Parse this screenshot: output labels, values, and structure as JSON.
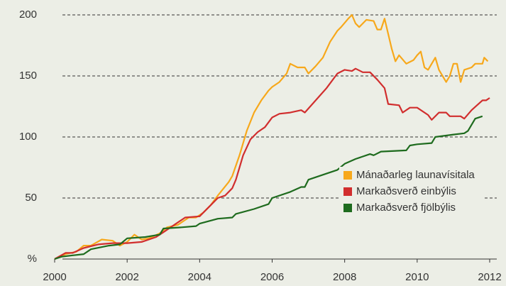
{
  "chart_data": {
    "type": "line",
    "xlim": [
      2000,
      2012
    ],
    "xticks": [
      2000,
      2002,
      2004,
      2006,
      2008,
      2010,
      2012
    ],
    "ylim": [
      0,
      200
    ],
    "yticks": [
      {
        "value": 0,
        "label": "%"
      },
      50,
      100,
      150,
      200
    ],
    "grid": true,
    "legend": "lower right",
    "series": [
      {
        "name": "Mánaðarleg launavísitala",
        "color": "#f7a81b",
        "x": [
          2000.0,
          2000.3,
          2000.6,
          2000.8,
          2001.0,
          2001.3,
          2001.6,
          2001.8,
          2002.0,
          2002.2,
          2002.4,
          2002.6,
          2002.9,
          2003.1,
          2003.4,
          2003.7,
          2003.9,
          2004.1,
          2004.3,
          2004.5,
          2004.8,
          2004.9,
          2005.1,
          2005.3,
          2005.5,
          2005.7,
          2005.9,
          2006.0,
          2006.2,
          2006.4,
          2006.5,
          2006.7,
          2006.9,
          2007.0,
          2007.2,
          2007.4,
          2007.6,
          2007.8,
          2007.9,
          2008.1,
          2008.2,
          2008.3,
          2008.4,
          2008.6,
          2008.8,
          2008.9,
          2009.0,
          2009.1,
          2009.3,
          2009.4,
          2009.5,
          2009.7,
          2009.9,
          2010.0,
          2010.1,
          2010.2,
          2010.3,
          2010.5,
          2010.6,
          2010.8,
          2010.9,
          2011.0,
          2011.1,
          2011.2,
          2011.3,
          2011.5,
          2011.6,
          2011.8,
          2011.85,
          2011.95
        ],
        "values": [
          0,
          4,
          6,
          11,
          11,
          16,
          15,
          11,
          14,
          20,
          16,
          17,
          21,
          26,
          28,
          34,
          34,
          38,
          44,
          52,
          63,
          68,
          85,
          105,
          120,
          130,
          138,
          141,
          145,
          152,
          160,
          157,
          157,
          152,
          158,
          165,
          178,
          187,
          190,
          197,
          200,
          193,
          190,
          196,
          195,
          188,
          188,
          197,
          172,
          162,
          167,
          160,
          163,
          167,
          170,
          157,
          155,
          165,
          155,
          145,
          150,
          160,
          160,
          145,
          155,
          157,
          160,
          160,
          165,
          162
        ]
      },
      {
        "name": "Markaðsverð einbýlis",
        "color": "#d12e2e",
        "x": [
          2000.0,
          2000.3,
          2000.5,
          2000.8,
          2001.2,
          2001.6,
          2002.0,
          2002.4,
          2002.8,
          2003.0,
          2003.3,
          2003.6,
          2004.0,
          2004.3,
          2004.5,
          2004.7,
          2004.9,
          2005.0,
          2005.2,
          2005.4,
          2005.6,
          2005.8,
          2006.0,
          2006.2,
          2006.5,
          2006.8,
          2006.9,
          2007.5,
          2007.8,
          2008.0,
          2008.2,
          2008.3,
          2008.5,
          2008.7,
          2008.9,
          2009.1,
          2009.2,
          2009.5,
          2009.6,
          2009.8,
          2010.0,
          2010.3,
          2010.4,
          2010.6,
          2010.8,
          2010.9,
          2011.2,
          2011.3,
          2011.5,
          2011.8,
          2011.9,
          2012.0
        ],
        "values": [
          0,
          5,
          5,
          9,
          12,
          13,
          13,
          14,
          18,
          22,
          28,
          34,
          35,
          44,
          50,
          52,
          58,
          65,
          85,
          98,
          104,
          108,
          116,
          119,
          120,
          122,
          120,
          140,
          152,
          155,
          154,
          156,
          153,
          153,
          147,
          140,
          127,
          126,
          120,
          124,
          124,
          118,
          114,
          120,
          120,
          117,
          117,
          115,
          122,
          130,
          130,
          132
        ]
      },
      {
        "name": "Markaðsverð fjölbýlis",
        "color": "#1e6b1e",
        "x": [
          2000.0,
          2000.2,
          2000.5,
          2000.8,
          2001.0,
          2001.5,
          2001.8,
          2002.0,
          2002.5,
          2002.9,
          2003.0,
          2003.5,
          2003.9,
          2004.0,
          2004.5,
          2004.9,
          2005.0,
          2005.5,
          2005.9,
          2006.0,
          2006.5,
          2006.8,
          2006.9,
          2007.0,
          2007.5,
          2007.8,
          2008.0,
          2008.3,
          2008.7,
          2008.8,
          2009.0,
          2009.7,
          2009.8,
          2010.0,
          2010.4,
          2010.5,
          2011.0,
          2011.3,
          2011.4,
          2011.6,
          2011.8
        ],
        "values": [
          0,
          2,
          3,
          4,
          8,
          11,
          12,
          17,
          18,
          20,
          25,
          26,
          27,
          29,
          33,
          34,
          37,
          41,
          45,
          50,
          55,
          59,
          59,
          65,
          70,
          73,
          78,
          82,
          86,
          85,
          88,
          89,
          93,
          94,
          95,
          100,
          102,
          103,
          105,
          115,
          117
        ]
      }
    ]
  }
}
